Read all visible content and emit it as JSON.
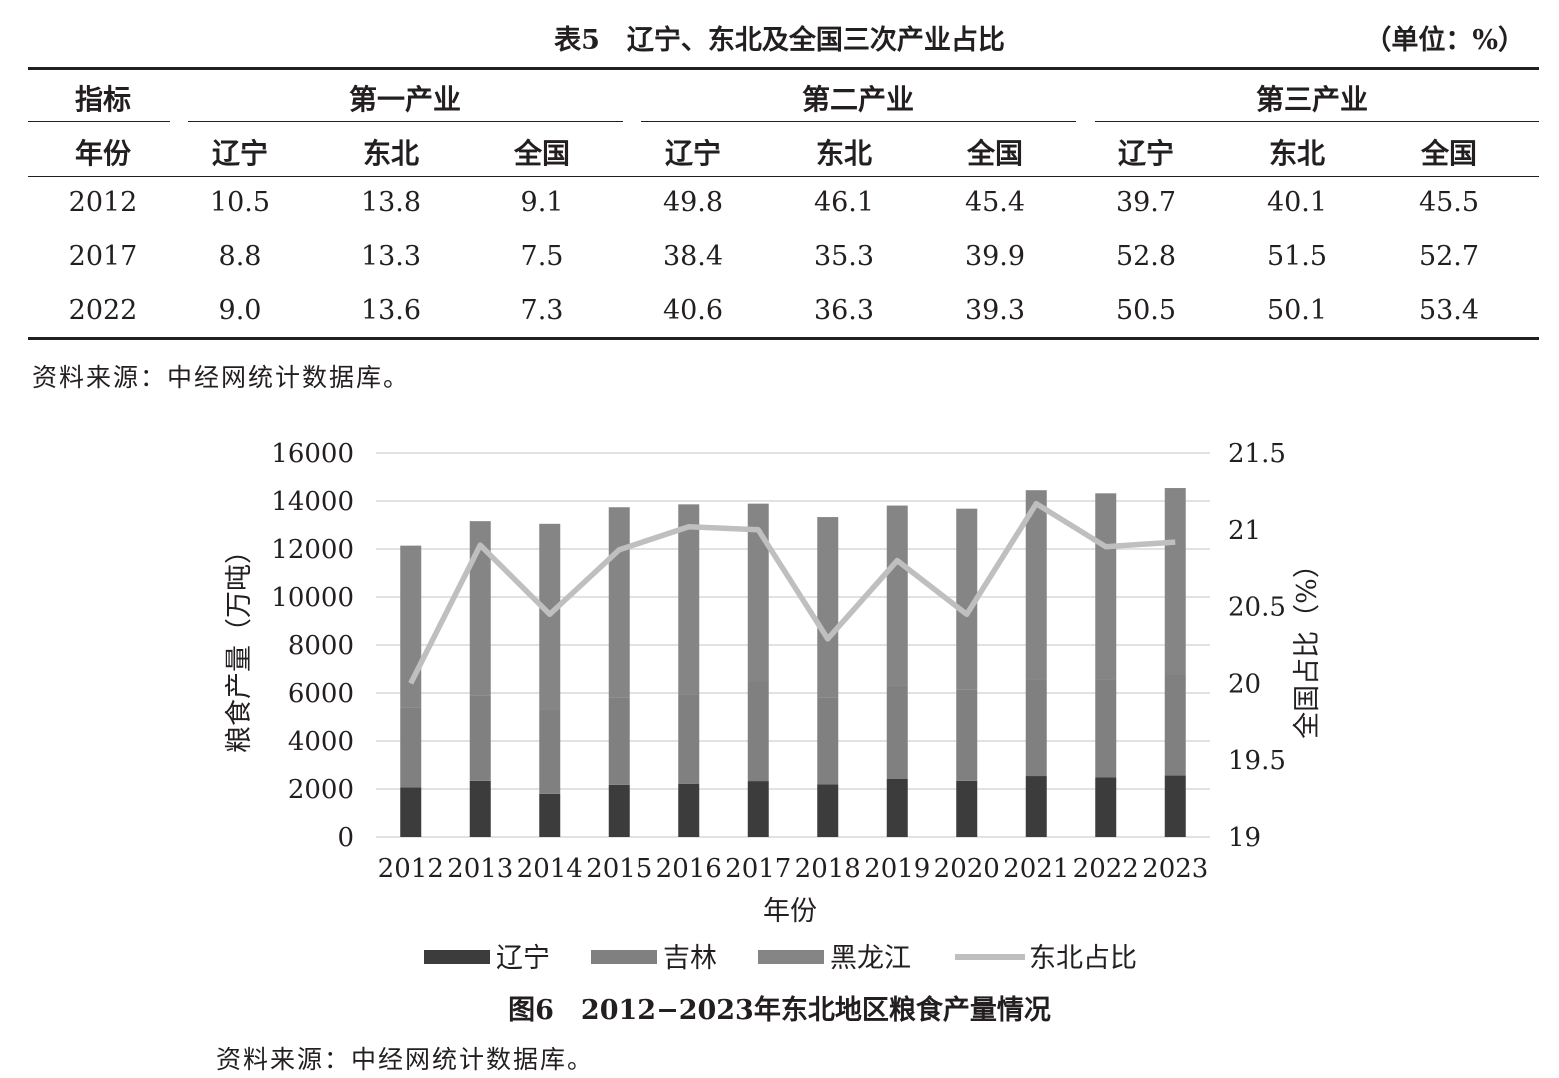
{
  "table": {
    "title": "表5　辽宁、东北及全国三次产业占比",
    "unit": "（单位：%）",
    "header_row1": [
      "指标",
      "第一产业",
      "第二产业",
      "第三产业"
    ],
    "header_row2": [
      "年份",
      "辽宁",
      "东北",
      "全国",
      "辽宁",
      "东北",
      "全国",
      "辽宁",
      "东北",
      "全国"
    ],
    "rows": [
      [
        "2012",
        "10.5",
        "13.8",
        "9.1",
        "49.8",
        "46.1",
        "45.4",
        "39.7",
        "40.1",
        "45.5"
      ],
      [
        "2017",
        "8.8",
        "13.3",
        "7.5",
        "38.4",
        "35.3",
        "39.9",
        "52.8",
        "51.5",
        "52.7"
      ],
      [
        "2022",
        "9.0",
        "13.6",
        "7.3",
        "40.6",
        "36.3",
        "39.3",
        "50.5",
        "50.1",
        "53.4"
      ]
    ],
    "source": "资料来源：中经网统计数据库。"
  },
  "figure": {
    "title": "图6　2012−2023年东北地区粮食产量情况",
    "source": "资料来源：中经网统计数据库。"
  },
  "colors": {
    "liaoning": "#3c3c3c",
    "jilin": "#808080",
    "heilongjiang": "#858585",
    "share_line": "#bfbfbf",
    "grid": "#d9d9d9"
  },
  "chart_data": {
    "type": "bar",
    "stacked": true,
    "title": "",
    "xlabel": "年份",
    "ylabel": "粮食产量（万吨）",
    "y2label": "全国占比（%）",
    "categories": [
      "2012",
      "2013",
      "2014",
      "2015",
      "2016",
      "2017",
      "2018",
      "2019",
      "2020",
      "2021",
      "2022",
      "2023"
    ],
    "ylim": [
      0,
      16000
    ],
    "yticks": [
      "0",
      "2000",
      "4000",
      "6000",
      "8000",
      "10000",
      "12000",
      "14000",
      "16000"
    ],
    "y2lim": [
      19,
      21.5
    ],
    "y2ticks": [
      "19",
      "19.5",
      "20",
      "20.5",
      "21",
      "21.5"
    ],
    "grid": true,
    "legend_position": "bottom",
    "series": [
      {
        "name": "辽宁",
        "axis": "left",
        "values": [
          2070,
          2340,
          1800,
          2170,
          2220,
          2330,
          2190,
          2430,
          2340,
          2540,
          2480,
          2560
        ]
      },
      {
        "name": "吉林",
        "axis": "left",
        "values": [
          3340,
          3550,
          3530,
          3650,
          3720,
          4150,
          3630,
          3880,
          3800,
          4040,
          4080,
          4190
        ]
      },
      {
        "name": "黑龙江",
        "axis": "left",
        "values": [
          6730,
          7270,
          7720,
          7920,
          7920,
          7410,
          7510,
          7500,
          7540,
          7870,
          7760,
          7790
        ]
      },
      {
        "name": "东北占比",
        "axis": "right",
        "type": "line",
        "values": [
          20.0,
          20.9,
          20.45,
          20.87,
          21.02,
          21.0,
          20.29,
          20.8,
          20.45,
          21.17,
          20.89,
          20.92
        ]
      }
    ]
  }
}
